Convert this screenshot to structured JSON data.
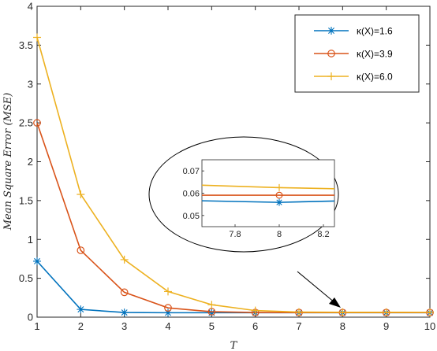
{
  "chart_data": {
    "type": "line",
    "xlabel": "T",
    "ylabel": "Mean Square Error (MSE)",
    "x": [
      1,
      2,
      3,
      4,
      5,
      6,
      7,
      8,
      9,
      10
    ],
    "xlim": [
      1,
      10
    ],
    "ylim": [
      0,
      4
    ],
    "xticks": [
      "1",
      "2",
      "3",
      "4",
      "5",
      "6",
      "7",
      "8",
      "9",
      "10"
    ],
    "yticks": [
      "0",
      "0.5",
      "1",
      "1.5",
      "2",
      "2.5",
      "3",
      "3.5",
      "4"
    ],
    "grid": false,
    "legend_position": "top-right",
    "series": [
      {
        "name": "κ(X)=1.6",
        "color": "#0072BD",
        "marker": "asterisk",
        "values": [
          0.72,
          0.1,
          0.06,
          0.057,
          0.057,
          0.057,
          0.057,
          0.057,
          0.057,
          0.057
        ]
      },
      {
        "name": "κ(X)=3.9",
        "color": "#D95319",
        "marker": "circle",
        "values": [
          2.5,
          0.86,
          0.32,
          0.12,
          0.07,
          0.06,
          0.059,
          0.059,
          0.059,
          0.059
        ]
      },
      {
        "name": "κ(X)=6.0",
        "color": "#EDB120",
        "marker": "plus",
        "values": [
          3.6,
          1.58,
          0.74,
          0.33,
          0.16,
          0.085,
          0.065,
          0.063,
          0.063,
          0.062
        ]
      }
    ],
    "inset": {
      "xlim": [
        7.65,
        8.25
      ],
      "ylim": [
        0.045,
        0.075
      ],
      "xticks": [
        "7.8",
        "8",
        "8.2"
      ],
      "yticks": [
        "0.05",
        "0.06",
        "0.07"
      ],
      "x": [
        7.65,
        8,
        8.25
      ],
      "series": [
        {
          "name": "κ(X)=1.6",
          "values": [
            0.0566,
            0.0559,
            0.0565
          ]
        },
        {
          "name": "κ(X)=3.9",
          "values": [
            0.0591,
            0.0591,
            0.0591
          ]
        },
        {
          "name": "κ(X)=6.0",
          "values": [
            0.0636,
            0.0625,
            0.062
          ]
        }
      ]
    }
  }
}
